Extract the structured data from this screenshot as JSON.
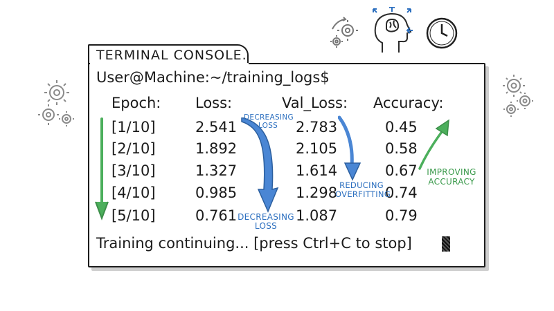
{
  "terminal": {
    "tab_title": "TERMINAL CONSOLE.",
    "prompt": "User@Machine:~/training_logs$",
    "status": "Training continuing... [press Ctrl+C to stop]"
  },
  "table": {
    "headers": [
      "Epoch:",
      "Loss:",
      "Val_Loss:",
      "Accuracy:"
    ],
    "rows": [
      {
        "epoch": "[1/10]",
        "loss": "2.541",
        "val_loss": "2.783",
        "accuracy": "0.45"
      },
      {
        "epoch": "[2/10]",
        "loss": "1.892",
        "val_loss": "2.105",
        "accuracy": "0.58"
      },
      {
        "epoch": "[3/10]",
        "loss": "1.327",
        "val_loss": "1.614",
        "accuracy": "0.67"
      },
      {
        "epoch": "[4/10]",
        "loss": "0.985",
        "val_loss": "1.298",
        "accuracy": "0.74"
      },
      {
        "epoch": "[5/10]",
        "loss": "0.761",
        "val_loss": "1.087",
        "accuracy": "0.79"
      }
    ]
  },
  "annotations": {
    "decreasing_loss_top": [
      "DECREASING",
      "LOSS"
    ],
    "decreasing_loss_bottom": [
      "DECREASING",
      "LOSS"
    ],
    "reducing_overfitting": [
      "REDUCING",
      "OVERFITTING"
    ],
    "improving_accuracy": [
      "IMPROVING",
      "ACCURACY"
    ]
  },
  "icons": [
    "gear-icon",
    "brain-head-icon",
    "clock-icon",
    "cycle-arrows-icon"
  ],
  "colors": {
    "ink": "#1b1b1b",
    "blue_arrow": "#4a86d4",
    "green_arrow": "#4caf5c",
    "gear": "#9a9a9a"
  }
}
